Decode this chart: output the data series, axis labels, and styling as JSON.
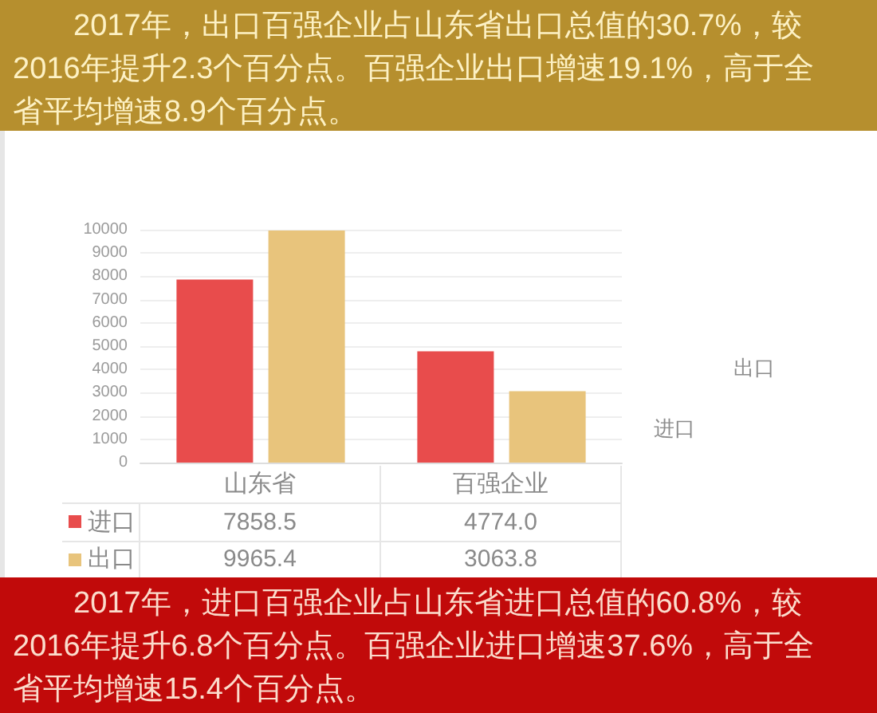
{
  "chart_data": {
    "type": "bar",
    "title": "2017年，出口百强企业占山东省出口总值的30.7%，较2016年提升2.3个百分点。百强企业出口增速19.1%，高于全省平均增速8.9个百分点。",
    "annotations": [
      "2017年，进口百强企业占山东省进口总值的60.8%，较2016年提升6.8个百分点。百强企业进口增速37.6%，高于全省平均增速15.4个百分点。"
    ],
    "categories": [
      "山东省",
      "百强企业"
    ],
    "series": [
      {
        "name": "进口",
        "color": "#e84c4c",
        "values": [
          7858.5,
          4774.0
        ],
        "value_labels": [
          "7858.5",
          "4774.0"
        ]
      },
      {
        "name": "出口",
        "color": "#e8c47c",
        "values": [
          9965.4,
          3063.8
        ],
        "value_labels": [
          "9965.4",
          "3063.8"
        ]
      }
    ],
    "ylim": [
      0,
      10000
    ],
    "yticks": [
      0,
      1000,
      2000,
      3000,
      4000,
      5000,
      6000,
      7000,
      8000,
      9000,
      10000
    ],
    "grid": "y",
    "legend": "bottom"
  }
}
